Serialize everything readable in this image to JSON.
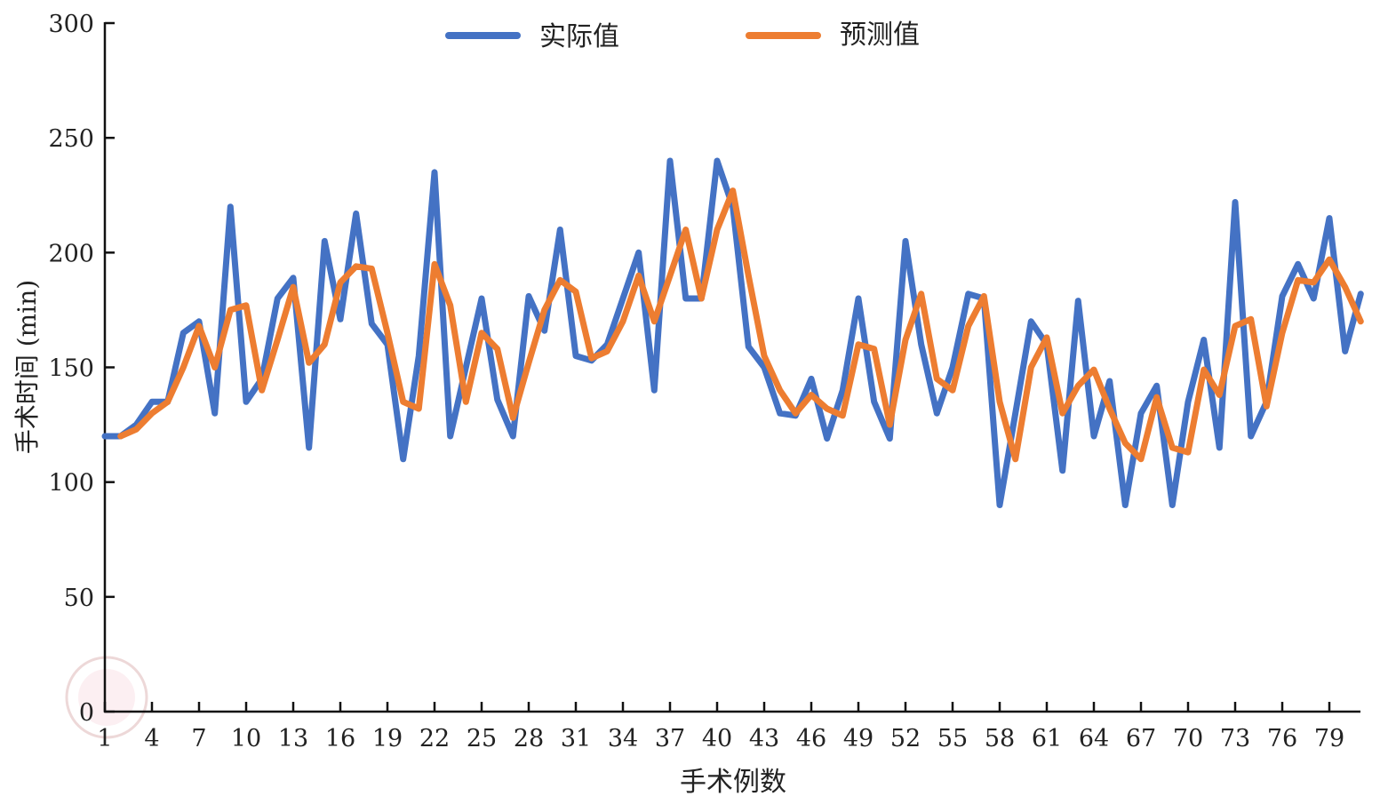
{
  "chart_data": {
    "type": "line",
    "title": "",
    "xlabel": "手术例数",
    "ylabel": "手术时间 (min)",
    "ylim": [
      0,
      300
    ],
    "xlim": [
      1,
      81
    ],
    "yticks": [
      0,
      50,
      100,
      150,
      200,
      250,
      300
    ],
    "xticks": [
      1,
      4,
      7,
      10,
      13,
      16,
      19,
      22,
      25,
      28,
      31,
      34,
      37,
      40,
      43,
      46,
      49,
      52,
      55,
      58,
      61,
      64,
      67,
      70,
      73,
      76,
      79
    ],
    "grid": false,
    "legend_position": "top-center",
    "series": [
      {
        "name": "实际值",
        "color": "#4472C4",
        "x_start": 1,
        "values": [
          120,
          120,
          125,
          135,
          135,
          165,
          170,
          130,
          220,
          135,
          145,
          180,
          189,
          115,
          205,
          171,
          217,
          169,
          160,
          110,
          155,
          235,
          120,
          150,
          180,
          136,
          120,
          181,
          166,
          210,
          155,
          153,
          160,
          180,
          200,
          140,
          240,
          180,
          180,
          240,
          220,
          159,
          150,
          130,
          129,
          145,
          119,
          140,
          180,
          135,
          119,
          205,
          160,
          130,
          150,
          182,
          180,
          90,
          130,
          170,
          160,
          105,
          179,
          120,
          144,
          90,
          130,
          142,
          90,
          135,
          162,
          115,
          222,
          120,
          135,
          181,
          195,
          180,
          215,
          157,
          182
        ]
      },
      {
        "name": "预测值",
        "color": "#ED7D31",
        "x_start": 2,
        "values": [
          120,
          123,
          130,
          135,
          150,
          168,
          150,
          175,
          177,
          140,
          162,
          185,
          152,
          160,
          187,
          194,
          193,
          165,
          135,
          132,
          195,
          177,
          135,
          165,
          158,
          128,
          152,
          175,
          188,
          183,
          154,
          157,
          170,
          190,
          170,
          190,
          210,
          180,
          210,
          227,
          190,
          155,
          140,
          130,
          138,
          132,
          129,
          160,
          158,
          125,
          162,
          182,
          145,
          140,
          168,
          181,
          135,
          110,
          150,
          163,
          130,
          142,
          149,
          132,
          117,
          110,
          137,
          115,
          113,
          149,
          138,
          168,
          171,
          133,
          165,
          188,
          187,
          197,
          185,
          170
        ]
      }
    ]
  }
}
